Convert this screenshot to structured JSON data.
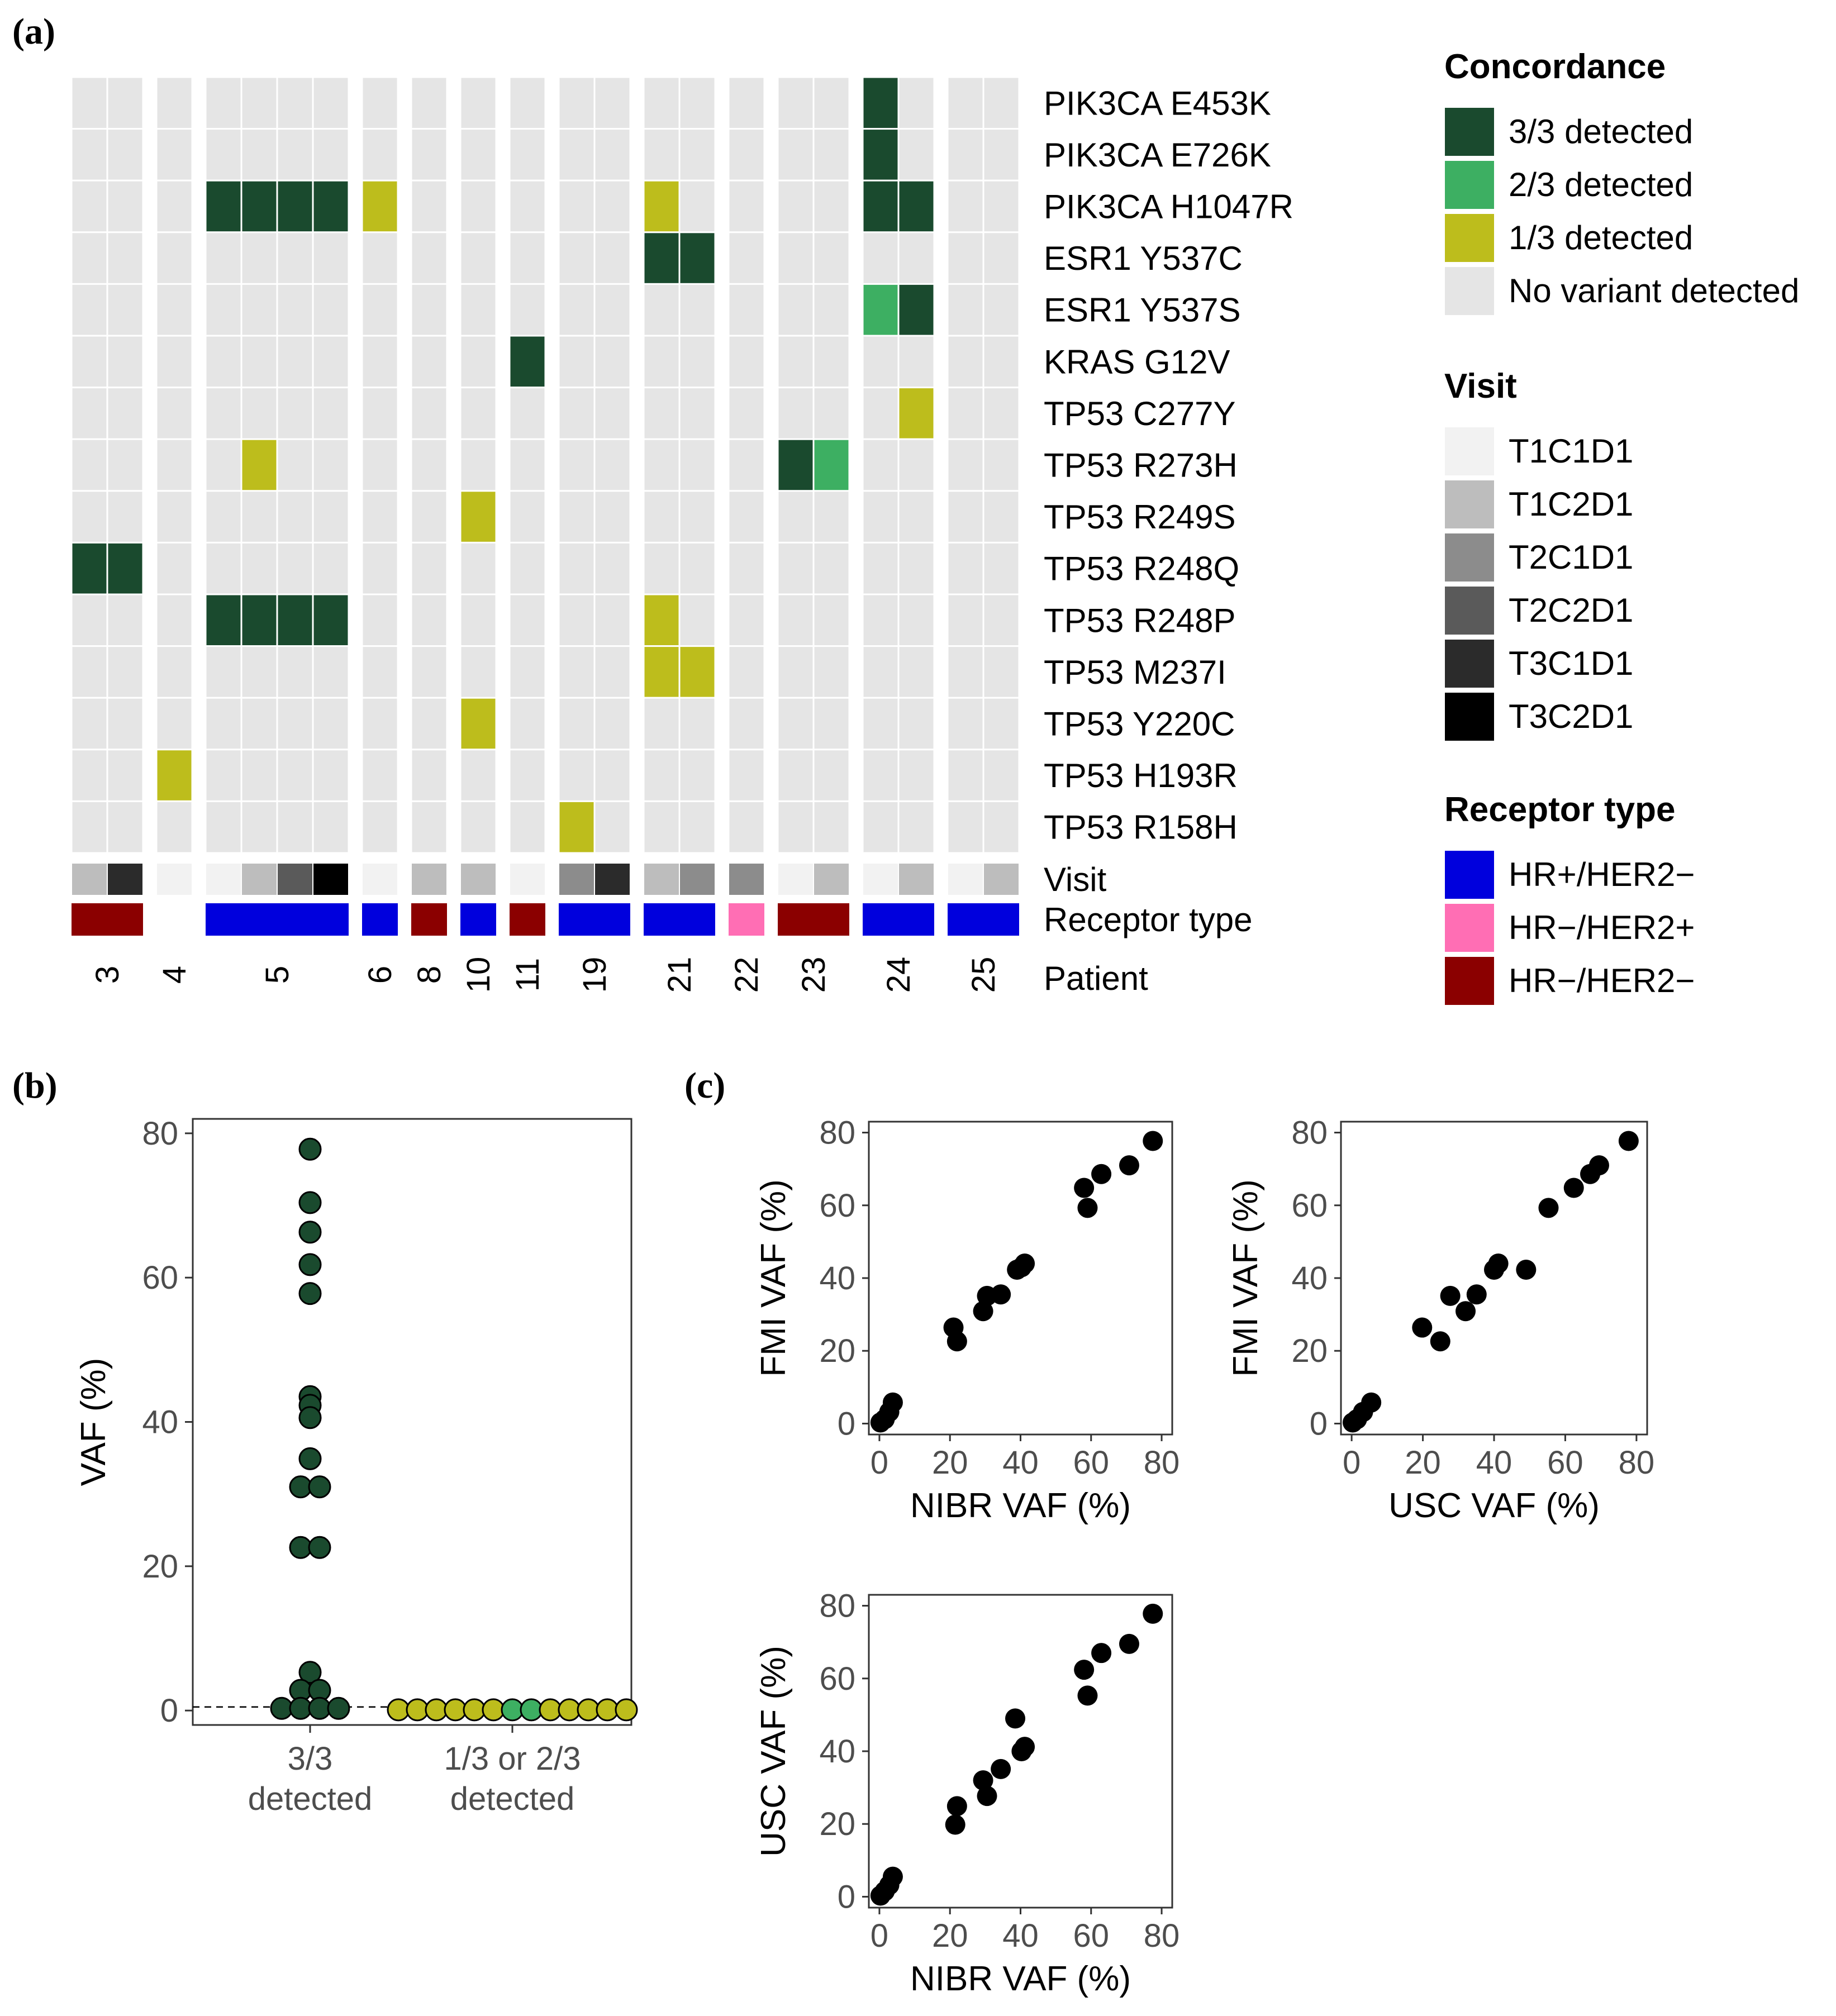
{
  "panels": {
    "a": "(a)",
    "b": "(b)",
    "c": "(c)"
  },
  "colors": {
    "concordance": {
      "3/3 detected": "#1a4a2e",
      "2/3 detected": "#3daf62",
      "1/3 detected": "#bdbd1c",
      "No variant detected": "#e5e5e5"
    },
    "visit": {
      "T1C1D1": "#f2f2f2",
      "T1C2D1": "#bdbdbd",
      "T2C1D1": "#8c8c8c",
      "T2C2D1": "#5a5a5a",
      "T3C1D1": "#2b2b2b",
      "T3C2D1": "#000000"
    },
    "receptor": {
      "HR+/HER2−": "#0000dd",
      "HR−/HER2+": "#ff6eb4",
      "HR−/HER2−": "#8b0000"
    }
  },
  "chart_data": [
    {
      "panel": "a",
      "type": "heatmap",
      "title": "",
      "rows": [
        "PIK3CA E453K",
        "PIK3CA E726K",
        "PIK3CA H1047R",
        "ESR1 Y537C",
        "ESR1 Y537S",
        "KRAS G12V",
        "TP53 C277Y",
        "TP53 R273H",
        "TP53 R249S",
        "TP53 R248Q",
        "TP53 R248P",
        "TP53 M237I",
        "TP53 Y220C",
        "TP53 H193R",
        "TP53 R158H"
      ],
      "patients": [
        {
          "id": "3",
          "receptor": "HR−/HER2−",
          "visits": [
            "T1C2D1",
            "T3C1D1"
          ]
        },
        {
          "id": "4",
          "receptor": null,
          "visits": [
            "T1C1D1"
          ]
        },
        {
          "id": "5",
          "receptor": "HR+/HER2−",
          "visits": [
            "T1C1D1",
            "T1C2D1",
            "T2C2D1",
            "T3C2D1"
          ]
        },
        {
          "id": "6",
          "receptor": "HR+/HER2−",
          "visits": [
            "T1C1D1"
          ]
        },
        {
          "id": "8",
          "receptor": "HR−/HER2−",
          "visits": [
            "T1C2D1"
          ]
        },
        {
          "id": "10",
          "receptor": "HR+/HER2−",
          "visits": [
            "T1C2D1"
          ]
        },
        {
          "id": "11",
          "receptor": "HR−/HER2−",
          "visits": [
            "T1C1D1"
          ]
        },
        {
          "id": "19",
          "receptor": "HR+/HER2−",
          "visits": [
            "T2C1D1",
            "T3C1D1"
          ]
        },
        {
          "id": "21",
          "receptor": "HR+/HER2−",
          "visits": [
            "T1C2D1",
            "T2C1D1"
          ]
        },
        {
          "id": "22",
          "receptor": "HR−/HER2+",
          "visits": [
            "T2C1D1"
          ]
        },
        {
          "id": "23",
          "receptor": "HR−/HER2−",
          "visits": [
            "T1C1D1",
            "T1C2D1"
          ]
        },
        {
          "id": "24",
          "receptor": "HR+/HER2−",
          "visits": [
            "T1C1D1",
            "T1C2D1"
          ]
        },
        {
          "id": "25",
          "receptor": "HR+/HER2−",
          "visits": [
            "T1C1D1",
            "T1C2D1"
          ]
        }
      ],
      "detected_cells": [
        {
          "variant": "PIK3CA E453K",
          "patient": "24",
          "visit_index": 0,
          "concordance": "3/3 detected"
        },
        {
          "variant": "PIK3CA E726K",
          "patient": "24",
          "visit_index": 0,
          "concordance": "3/3 detected"
        },
        {
          "variant": "PIK3CA H1047R",
          "patient": "5",
          "visit_index": 0,
          "concordance": "3/3 detected"
        },
        {
          "variant": "PIK3CA H1047R",
          "patient": "5",
          "visit_index": 1,
          "concordance": "3/3 detected"
        },
        {
          "variant": "PIK3CA H1047R",
          "patient": "5",
          "visit_index": 2,
          "concordance": "3/3 detected"
        },
        {
          "variant": "PIK3CA H1047R",
          "patient": "5",
          "visit_index": 3,
          "concordance": "3/3 detected"
        },
        {
          "variant": "PIK3CA H1047R",
          "patient": "6",
          "visit_index": 0,
          "concordance": "1/3 detected"
        },
        {
          "variant": "PIK3CA H1047R",
          "patient": "21",
          "visit_index": 0,
          "concordance": "1/3 detected"
        },
        {
          "variant": "PIK3CA H1047R",
          "patient": "24",
          "visit_index": 0,
          "concordance": "3/3 detected"
        },
        {
          "variant": "PIK3CA H1047R",
          "patient": "24",
          "visit_index": 1,
          "concordance": "3/3 detected"
        },
        {
          "variant": "ESR1 Y537C",
          "patient": "21",
          "visit_index": 0,
          "concordance": "3/3 detected"
        },
        {
          "variant": "ESR1 Y537C",
          "patient": "21",
          "visit_index": 1,
          "concordance": "3/3 detected"
        },
        {
          "variant": "ESR1 Y537S",
          "patient": "24",
          "visit_index": 0,
          "concordance": "2/3 detected"
        },
        {
          "variant": "ESR1 Y537S",
          "patient": "24",
          "visit_index": 1,
          "concordance": "3/3 detected"
        },
        {
          "variant": "KRAS G12V",
          "patient": "11",
          "visit_index": 0,
          "concordance": "3/3 detected"
        },
        {
          "variant": "TP53 C277Y",
          "patient": "24",
          "visit_index": 1,
          "concordance": "1/3 detected"
        },
        {
          "variant": "TP53 R273H",
          "patient": "5",
          "visit_index": 1,
          "concordance": "1/3 detected"
        },
        {
          "variant": "TP53 R273H",
          "patient": "23",
          "visit_index": 0,
          "concordance": "3/3 detected"
        },
        {
          "variant": "TP53 R273H",
          "patient": "23",
          "visit_index": 1,
          "concordance": "2/3 detected"
        },
        {
          "variant": "TP53 R249S",
          "patient": "10",
          "visit_index": 0,
          "concordance": "1/3 detected"
        },
        {
          "variant": "TP53 R248Q",
          "patient": "3",
          "visit_index": 0,
          "concordance": "3/3 detected"
        },
        {
          "variant": "TP53 R248Q",
          "patient": "3",
          "visit_index": 1,
          "concordance": "3/3 detected"
        },
        {
          "variant": "TP53 R248P",
          "patient": "5",
          "visit_index": 0,
          "concordance": "3/3 detected"
        },
        {
          "variant": "TP53 R248P",
          "patient": "5",
          "visit_index": 1,
          "concordance": "3/3 detected"
        },
        {
          "variant": "TP53 R248P",
          "patient": "5",
          "visit_index": 2,
          "concordance": "3/3 detected"
        },
        {
          "variant": "TP53 R248P",
          "patient": "5",
          "visit_index": 3,
          "concordance": "3/3 detected"
        },
        {
          "variant": "TP53 R248P",
          "patient": "21",
          "visit_index": 0,
          "concordance": "1/3 detected"
        },
        {
          "variant": "TP53 M237I",
          "patient": "21",
          "visit_index": 0,
          "concordance": "1/3 detected"
        },
        {
          "variant": "TP53 M237I",
          "patient": "21",
          "visit_index": 1,
          "concordance": "1/3 detected"
        },
        {
          "variant": "TP53 Y220C",
          "patient": "10",
          "visit_index": 0,
          "concordance": "1/3 detected"
        },
        {
          "variant": "TP53 H193R",
          "patient": "4",
          "visit_index": 0,
          "concordance": "1/3 detected"
        },
        {
          "variant": "TP53 R158H",
          "patient": "19",
          "visit_index": 0,
          "concordance": "1/3 detected"
        }
      ],
      "annotation_row_labels": [
        "Visit",
        "Receptor type",
        "Patient"
      ],
      "legends": [
        {
          "title": "Concordance",
          "items": [
            "3/3 detected",
            "2/3 detected",
            "1/3 detected",
            "No variant detected"
          ]
        },
        {
          "title": "Visit",
          "items": [
            "T1C1D1",
            "T1C2D1",
            "T2C1D1",
            "T2C2D1",
            "T3C1D1",
            "T3C2D1"
          ]
        },
        {
          "title": "Receptor type",
          "items": [
            "HR+/HER2−",
            "HR−/HER2+",
            "HR−/HER2−"
          ]
        }
      ]
    },
    {
      "panel": "b",
      "type": "scatter",
      "subtype": "dotplot",
      "ylabel": "VAF (%)",
      "ylim": [
        -2,
        82
      ],
      "yticks": [
        0,
        20,
        40,
        60,
        80
      ],
      "categories": [
        "3/3\ndetected",
        "1/3 or 2/3\ndetected"
      ],
      "reference_line_y": 0.5,
      "groups": [
        {
          "category": "3/3\ndetected",
          "points": [
            {
              "x": 0,
              "y": 77.8,
              "c": "3/3 detected"
            },
            {
              "x": 0,
              "y": 70.4,
              "c": "3/3 detected"
            },
            {
              "x": 0,
              "y": 66.3,
              "c": "3/3 detected"
            },
            {
              "x": 0,
              "y": 61.8,
              "c": "3/3 detected"
            },
            {
              "x": 0,
              "y": 57.8,
              "c": "3/3 detected"
            },
            {
              "x": 0,
              "y": 43.5,
              "c": "3/3 detected"
            },
            {
              "x": 0,
              "y": 42.3,
              "c": "3/3 detected"
            },
            {
              "x": 0,
              "y": 40.6,
              "c": "3/3 detected"
            },
            {
              "x": 0,
              "y": 34.9,
              "c": "3/3 detected"
            },
            {
              "x": -0.5,
              "y": 31.0,
              "c": "3/3 detected"
            },
            {
              "x": 0.5,
              "y": 31.0,
              "c": "3/3 detected"
            },
            {
              "x": -0.5,
              "y": 22.6,
              "c": "3/3 detected"
            },
            {
              "x": 0.5,
              "y": 22.6,
              "c": "3/3 detected"
            },
            {
              "x": 0,
              "y": 5.3,
              "c": "3/3 detected"
            },
            {
              "x": -0.5,
              "y": 2.8,
              "c": "3/3 detected"
            },
            {
              "x": 0.5,
              "y": 2.8,
              "c": "3/3 detected"
            },
            {
              "x": -1.5,
              "y": 0.3,
              "c": "3/3 detected"
            },
            {
              "x": -0.5,
              "y": 0.3,
              "c": "3/3 detected"
            },
            {
              "x": 0.5,
              "y": 0.3,
              "c": "3/3 detected"
            },
            {
              "x": 1.5,
              "y": 0.3,
              "c": "3/3 detected"
            }
          ]
        },
        {
          "category": "1/3 or 2/3\ndetected",
          "points": [
            {
              "x": -6,
              "y": 0.1,
              "c": "1/3 detected"
            },
            {
              "x": -5,
              "y": 0.1,
              "c": "1/3 detected"
            },
            {
              "x": -4,
              "y": 0.1,
              "c": "1/3 detected"
            },
            {
              "x": -3,
              "y": 0.1,
              "c": "1/3 detected"
            },
            {
              "x": -2,
              "y": 0.1,
              "c": "1/3 detected"
            },
            {
              "x": -1,
              "y": 0.1,
              "c": "1/3 detected"
            },
            {
              "x": 0,
              "y": 0.1,
              "c": "2/3 detected"
            },
            {
              "x": 1,
              "y": 0.1,
              "c": "2/3 detected"
            },
            {
              "x": 2,
              "y": 0.1,
              "c": "1/3 detected"
            },
            {
              "x": 3,
              "y": 0.1,
              "c": "1/3 detected"
            },
            {
              "x": 4,
              "y": 0.1,
              "c": "1/3 detected"
            },
            {
              "x": 5,
              "y": 0.1,
              "c": "1/3 detected"
            },
            {
              "x": 6,
              "y": 0.1,
              "c": "1/3 detected"
            }
          ]
        }
      ]
    },
    {
      "panel": "c1",
      "type": "scatter",
      "xlabel": "NIBR VAF (%)",
      "ylabel": "FMI VAF (%)",
      "xlim": [
        -3,
        83
      ],
      "ylim": [
        -3,
        83
      ],
      "xticks": [
        0,
        20,
        40,
        60,
        80
      ],
      "yticks": [
        0,
        20,
        40,
        60,
        80
      ],
      "points": [
        [
          0.3,
          0.3
        ],
        [
          1.5,
          1.2
        ],
        [
          2.8,
          3.2
        ],
        [
          3.8,
          5.8
        ],
        [
          21.0,
          26.4
        ],
        [
          22.0,
          22.6
        ],
        [
          29.4,
          30.9
        ],
        [
          30.5,
          35.1
        ],
        [
          34.4,
          35.5
        ],
        [
          39.0,
          42.3
        ],
        [
          40.3,
          43.0
        ],
        [
          41.2,
          44.0
        ],
        [
          58.0,
          64.8
        ],
        [
          59.0,
          59.3
        ],
        [
          62.9,
          68.6
        ],
        [
          70.8,
          71.0
        ],
        [
          77.5,
          77.7
        ]
      ]
    },
    {
      "panel": "c2",
      "type": "scatter",
      "xlabel": "USC VAF (%)",
      "ylabel": "FMI VAF (%)",
      "xlim": [
        -3,
        83
      ],
      "ylim": [
        -3,
        83
      ],
      "xticks": [
        0,
        20,
        40,
        60,
        80
      ],
      "yticks": [
        0,
        20,
        40,
        60,
        80
      ],
      "points": [
        [
          0.3,
          0.3
        ],
        [
          1.5,
          1.2
        ],
        [
          3.2,
          3.2
        ],
        [
          5.5,
          5.8
        ],
        [
          19.8,
          26.4
        ],
        [
          24.9,
          22.6
        ],
        [
          27.7,
          35.1
        ],
        [
          32.0,
          30.9
        ],
        [
          35.1,
          35.5
        ],
        [
          40.0,
          42.3
        ],
        [
          41.2,
          44.0
        ],
        [
          49.0,
          42.3
        ],
        [
          55.3,
          59.3
        ],
        [
          62.4,
          64.8
        ],
        [
          67.0,
          68.6
        ],
        [
          69.5,
          71.0
        ],
        [
          77.8,
          77.7
        ]
      ]
    },
    {
      "panel": "c3",
      "type": "scatter",
      "xlabel": "NIBR VAF (%)",
      "ylabel": "USC VAF (%)",
      "xlim": [
        -3,
        83
      ],
      "ylim": [
        -3,
        83
      ],
      "xticks": [
        0,
        20,
        40,
        60,
        80
      ],
      "yticks": [
        0,
        20,
        40,
        60,
        80
      ],
      "points": [
        [
          0.3,
          0.3
        ],
        [
          1.5,
          1.5
        ],
        [
          2.8,
          3.2
        ],
        [
          3.8,
          5.5
        ],
        [
          21.5,
          19.8
        ],
        [
          22.0,
          24.9
        ],
        [
          29.4,
          32.0
        ],
        [
          30.5,
          27.7
        ],
        [
          34.4,
          35.1
        ],
        [
          38.5,
          49.0
        ],
        [
          40.3,
          40.0
        ],
        [
          41.2,
          41.2
        ],
        [
          58.0,
          62.4
        ],
        [
          59.0,
          55.3
        ],
        [
          62.9,
          67.0
        ],
        [
          70.8,
          69.5
        ],
        [
          77.5,
          77.8
        ]
      ]
    }
  ]
}
